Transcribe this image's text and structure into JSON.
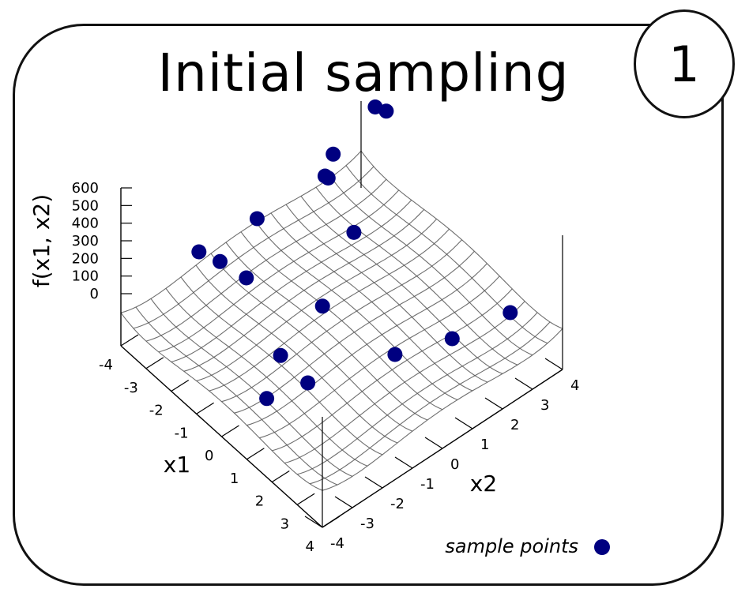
{
  "title": "Initial sampling",
  "step_badge": "1",
  "chart_data": {
    "type": "scatter",
    "surface_type": "3d-surface-wireframe",
    "xlabel": "x1",
    "ylabel": "x2",
    "zlabel": "f(x1, x2)",
    "x1_ticks": [
      "-4",
      "-3",
      "-2",
      "-1",
      "0",
      "1",
      "2",
      "3",
      "4"
    ],
    "x2_ticks": [
      "-4",
      "-3",
      "-2",
      "-1",
      "0",
      "1",
      "2",
      "3",
      "4"
    ],
    "z_ticks": [
      "600",
      "500",
      "400",
      "300",
      "200",
      "100",
      "0"
    ],
    "x_range": [
      -4,
      4
    ],
    "y_range": [
      -4,
      4
    ],
    "z_range": [
      0,
      600
    ],
    "grid": true,
    "marker_color": "#000080",
    "legend": {
      "label": "sample points",
      "position": "bottom-right"
    },
    "series": [
      {
        "name": "sample points",
        "points": [
          {
            "x1": -4.0,
            "x2": -1.4,
            "f": 120
          },
          {
            "x1": -3.4,
            "x2": -1.2,
            "f": 120
          },
          {
            "x1": -3.6,
            "x2": 0.2,
            "f": 180
          },
          {
            "x1": -1.9,
            "x2": 2.0,
            "f": 120
          },
          {
            "x1": -4.0,
            "x2": 2.8,
            "f": 80
          },
          {
            "x1": -3.4,
            "x2": 2.4,
            "f": 190
          },
          {
            "x1": -3.2,
            "x2": 2.4,
            "f": 350
          },
          {
            "x1": -3.2,
            "x2": 3.8,
            "f": 460
          },
          {
            "x1": -3.0,
            "x2": 4.0,
            "f": 440
          },
          {
            "x1": -2.0,
            "x2": -1.5,
            "f": 240
          },
          {
            "x1": -0.4,
            "x2": -1.7,
            "f": 30
          },
          {
            "x1": -1.0,
            "x2": 0.2,
            "f": 20
          },
          {
            "x1": 0.6,
            "x2": -3.0,
            "f": 60
          },
          {
            "x1": 0.8,
            "x2": -1.8,
            "f": 40
          },
          {
            "x1": 1.4,
            "x2": 0.6,
            "f": 10
          },
          {
            "x1": 2.0,
            "x2": 2.0,
            "f": 20
          },
          {
            "x1": 2.4,
            "x2": 3.6,
            "f": 40
          }
        ]
      }
    ]
  }
}
